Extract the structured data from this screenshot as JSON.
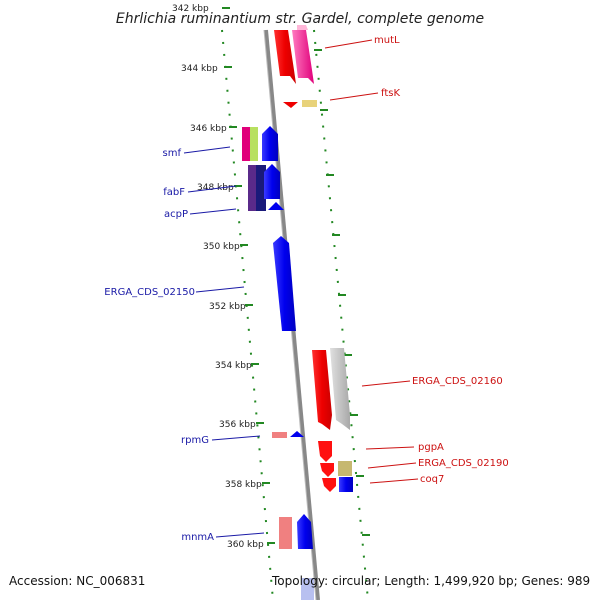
{
  "title": "Ehrlichia ruminantium str. Gardel, complete genome",
  "accession": "Accession: NC_006831",
  "topology": "Topology: circular; Length: 1,499,920 bp; Genes: 989",
  "ticks": [
    "342 kbp",
    "344 kbp",
    "346 kbp",
    "348 kbp",
    "350 kbp",
    "352 kbp",
    "354 kbp",
    "356 kbp",
    "358 kbp",
    "360 kbp"
  ],
  "labels_forward": [
    "smf",
    "fabF",
    "acpP",
    "ERGA_CDS_02150",
    "rpmG",
    "mnmA"
  ],
  "labels_reverse": [
    "mutL",
    "ftsK",
    "ERGA_CDS_02160",
    "pgpA",
    "ERGA_CDS_02190",
    "coq7"
  ],
  "colors": {
    "forward_label": "#1a1aa6",
    "reverse_label": "#cc1111",
    "backbone": "#888888",
    "tick": "#228822"
  }
}
